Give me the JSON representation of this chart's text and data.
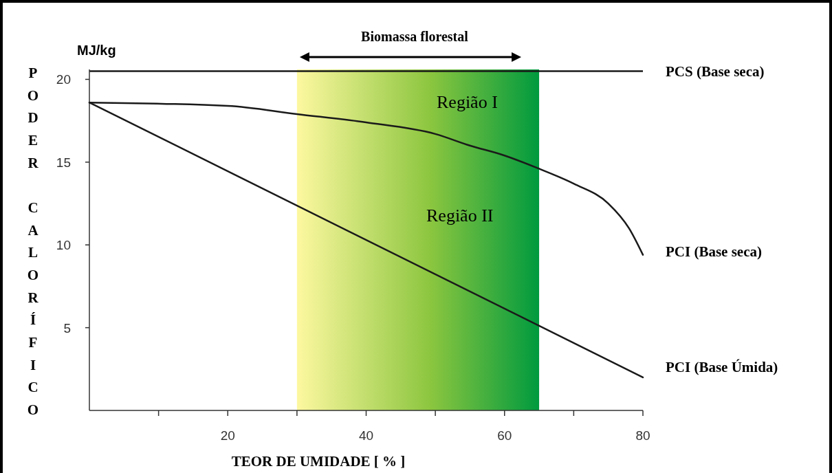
{
  "chart_data": {
    "type": "line",
    "xlabel": "TEOR DE UMIDADE [ % ]",
    "ylabel": "PODER CALORÍFICO",
    "xlim": [
      0,
      80
    ],
    "ylim": [
      0,
      20.6
    ],
    "xticks": [
      {
        "value": 10,
        "label": null
      },
      20,
      {
        "value": 30,
        "label": null
      },
      40,
      {
        "value": 50,
        "label": null
      },
      60,
      {
        "value": 70,
        "label": null
      },
      80
    ],
    "yticks": [
      5,
      10,
      15,
      20
    ],
    "grid": false,
    "marker": "none",
    "line_style": "solid",
    "series": [
      {
        "name": "PCI (Base seca)",
        "color": "#1a1a1a",
        "x": [
          0,
          20,
          30,
          40,
          50,
          55,
          60,
          65,
          70,
          75,
          78,
          80
        ],
        "values": [
          18.6,
          18.4,
          17.9,
          17.4,
          16.7,
          16.0,
          15.4,
          14.6,
          13.7,
          12.5,
          11.0,
          9.4
        ]
      },
      {
        "name": "PCI (Base Úmida)",
        "color": "#1a1a1a",
        "x": [
          0,
          80
        ],
        "values": [
          18.6,
          2.0
        ]
      }
    ],
    "ref_lines": [
      {
        "axis": "y",
        "value": 20.5,
        "label": "PCS (Base seca)",
        "color": "#1a1a1a"
      }
    ],
    "bands": [
      {
        "axis": "x",
        "from": 30,
        "to": 65,
        "label": "Biomassa florestal",
        "color": "#009a3e"
      }
    ],
    "annotations": [
      "MJ/kg",
      "Região I",
      "Região II"
    ]
  }
}
